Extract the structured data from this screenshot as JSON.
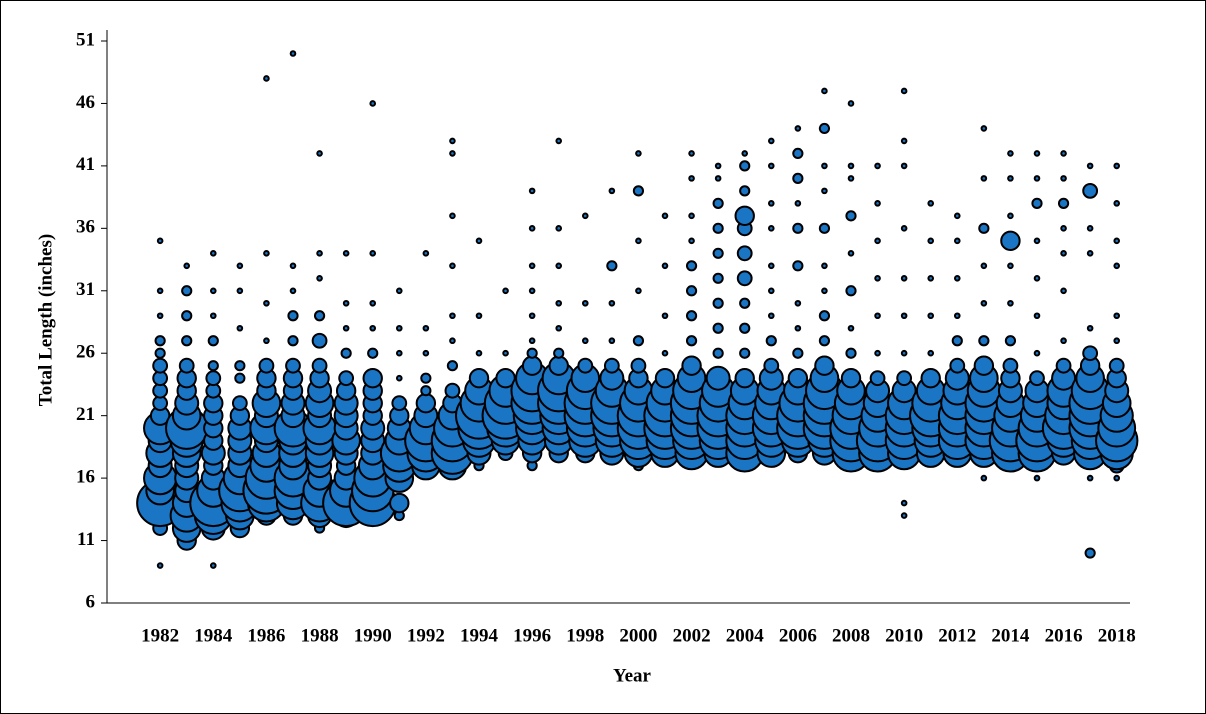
{
  "chart_data": {
    "type": "bubble",
    "x_label": "Year",
    "y_label": "Total Length (inches)",
    "xlim": [
      1980,
      2018.5
    ],
    "xticks": [
      1982,
      1984,
      1986,
      1988,
      1990,
      1992,
      1994,
      1996,
      1998,
      2000,
      2002,
      2004,
      2006,
      2008,
      2010,
      2012,
      2014,
      2016,
      2018
    ],
    "ylim": [
      6,
      51
    ],
    "yticks": [
      6,
      11,
      16,
      21,
      26,
      31,
      36,
      41,
      46,
      51
    ],
    "color": "#1a75c4",
    "edge_color": "#000000",
    "series": [
      {
        "x": 1982,
        "y": [
          9,
          12,
          13,
          14,
          15,
          16,
          17,
          18,
          19,
          20,
          21,
          22,
          23,
          24,
          25,
          26,
          27,
          29,
          31,
          35
        ],
        "size": [
          1,
          3,
          4,
          10,
          6,
          7,
          5,
          6,
          5,
          7,
          4,
          3,
          3,
          3,
          3,
          2,
          2,
          1,
          1,
          1
        ]
      },
      {
        "x": 1983,
        "y": [
          11,
          12,
          13,
          14,
          15,
          16,
          17,
          18,
          19,
          20,
          21,
          22,
          23,
          24,
          25,
          27,
          29,
          31,
          33
        ],
        "size": [
          4,
          6,
          7,
          6,
          5,
          5,
          5,
          6,
          7,
          9,
          6,
          5,
          4,
          4,
          3,
          2,
          2,
          2,
          1
        ]
      },
      {
        "x": 1984,
        "y": [
          9,
          12,
          13,
          14,
          15,
          16,
          17,
          18,
          19,
          20,
          21,
          22,
          23,
          24,
          25,
          27,
          29,
          31,
          34
        ],
        "size": [
          1,
          5,
          8,
          10,
          7,
          5,
          4,
          5,
          4,
          4,
          4,
          4,
          3,
          3,
          2,
          2,
          1,
          1,
          1
        ]
      },
      {
        "x": 1985,
        "y": [
          12,
          13,
          14,
          15,
          16,
          17,
          18,
          19,
          20,
          21,
          22,
          24,
          25,
          28,
          31,
          33
        ],
        "size": [
          4,
          6,
          8,
          9,
          7,
          5,
          5,
          5,
          5,
          4,
          3,
          2,
          2,
          1,
          1,
          1
        ]
      },
      {
        "x": 1986,
        "y": [
          13,
          14,
          15,
          16,
          17,
          18,
          19,
          20,
          21,
          22,
          23,
          24,
          25,
          27,
          30,
          34,
          48
        ],
        "size": [
          4,
          8,
          10,
          9,
          7,
          6,
          5,
          7,
          5,
          6,
          4,
          4,
          3,
          1,
          1,
          1,
          1
        ]
      },
      {
        "x": 1987,
        "y": [
          13,
          14,
          15,
          16,
          17,
          18,
          19,
          20,
          21,
          22,
          23,
          24,
          25,
          27,
          29,
          31,
          33,
          50
        ],
        "size": [
          4,
          7,
          8,
          8,
          6,
          6,
          6,
          8,
          5,
          5,
          4,
          4,
          3,
          2,
          2,
          1,
          1,
          1
        ]
      },
      {
        "x": 1988,
        "y": [
          12,
          13,
          14,
          15,
          16,
          17,
          18,
          19,
          20,
          21,
          22,
          23,
          24,
          25,
          27,
          29,
          32,
          34,
          42
        ],
        "size": [
          2,
          5,
          8,
          7,
          5,
          5,
          6,
          6,
          7,
          5,
          6,
          5,
          4,
          3,
          3,
          2,
          1,
          1,
          1
        ]
      },
      {
        "x": 1989,
        "y": [
          13,
          14,
          15,
          16,
          17,
          18,
          19,
          20,
          21,
          22,
          23,
          24,
          26,
          28,
          30,
          34
        ],
        "size": [
          5,
          10,
          7,
          5,
          4,
          5,
          6,
          5,
          5,
          5,
          4,
          3,
          2,
          1,
          1,
          1
        ]
      },
      {
        "x": 1990,
        "y": [
          13,
          14,
          15,
          16,
          17,
          18,
          19,
          20,
          21,
          22,
          23,
          24,
          26,
          28,
          30,
          34,
          46
        ],
        "size": [
          4,
          10,
          9,
          8,
          6,
          5,
          5,
          5,
          4,
          4,
          4,
          4,
          2,
          1,
          1,
          1,
          1
        ]
      },
      {
        "x": 1991,
        "y": [
          13,
          14,
          16,
          17,
          18,
          19,
          20,
          21,
          22,
          24,
          26,
          28,
          31
        ],
        "size": [
          2,
          4,
          6,
          7,
          8,
          6,
          5,
          4,
          3,
          1,
          1,
          1,
          1
        ]
      },
      {
        "x": 1992,
        "y": [
          17,
          18,
          19,
          20,
          21,
          22,
          23,
          24,
          26,
          28,
          34
        ],
        "size": [
          6,
          8,
          9,
          7,
          5,
          4,
          2,
          2,
          1,
          1,
          1
        ]
      },
      {
        "x": 1993,
        "y": [
          17,
          18,
          19,
          20,
          21,
          22,
          23,
          25,
          27,
          29,
          33,
          37,
          42,
          43
        ],
        "size": [
          6,
          9,
          9,
          8,
          6,
          4,
          3,
          2,
          1,
          1,
          1,
          1,
          1,
          1
        ]
      },
      {
        "x": 1994,
        "y": [
          17,
          18,
          19,
          20,
          21,
          22,
          23,
          24,
          26,
          29,
          35
        ],
        "size": [
          2,
          5,
          7,
          9,
          10,
          8,
          6,
          4,
          1,
          1,
          1
        ]
      },
      {
        "x": 1995,
        "y": [
          18,
          19,
          20,
          21,
          22,
          23,
          24,
          26,
          31
        ],
        "size": [
          3,
          6,
          8,
          10,
          9,
          7,
          4,
          1,
          1
        ]
      },
      {
        "x": 1996,
        "y": [
          17,
          18,
          19,
          20,
          21,
          22,
          23,
          24,
          25,
          26,
          27,
          29,
          31,
          33,
          36,
          39
        ],
        "size": [
          2,
          4,
          6,
          7,
          8,
          9,
          9,
          7,
          4,
          2,
          1,
          1,
          1,
          1,
          1,
          1
        ]
      },
      {
        "x": 1997,
        "y": [
          18,
          19,
          20,
          21,
          22,
          23,
          24,
          25,
          26,
          28,
          30,
          33,
          36,
          43
        ],
        "size": [
          4,
          6,
          7,
          8,
          9,
          9,
          7,
          4,
          2,
          1,
          1,
          1,
          1,
          1
        ]
      },
      {
        "x": 1998,
        "y": [
          18,
          19,
          20,
          21,
          22,
          23,
          24,
          25,
          27,
          30,
          37
        ],
        "size": [
          4,
          7,
          8,
          9,
          9,
          8,
          6,
          3,
          1,
          1,
          1
        ]
      },
      {
        "x": 1999,
        "y": [
          18,
          19,
          20,
          21,
          22,
          23,
          24,
          25,
          27,
          30,
          33,
          39
        ],
        "size": [
          5,
          7,
          8,
          9,
          9,
          7,
          5,
          3,
          1,
          1,
          2,
          1
        ]
      },
      {
        "x": 2000,
        "y": [
          17,
          18,
          19,
          20,
          21,
          22,
          23,
          24,
          25,
          27,
          31,
          35,
          39,
          42
        ],
        "size": [
          2,
          6,
          8,
          9,
          9,
          8,
          6,
          4,
          3,
          2,
          1,
          1,
          2,
          1
        ]
      },
      {
        "x": 2001,
        "y": [
          18,
          19,
          20,
          21,
          22,
          23,
          24,
          26,
          29,
          33,
          37
        ],
        "size": [
          6,
          8,
          9,
          9,
          8,
          6,
          4,
          1,
          1,
          1,
          1
        ]
      },
      {
        "x": 2002,
        "y": [
          18,
          19,
          20,
          21,
          22,
          23,
          24,
          25,
          27,
          29,
          31,
          33,
          35,
          37,
          40,
          42
        ],
        "size": [
          7,
          8,
          9,
          9,
          9,
          8,
          6,
          4,
          2,
          2,
          2,
          2,
          1,
          1,
          1,
          1
        ]
      },
      {
        "x": 2003,
        "y": [
          18,
          19,
          20,
          21,
          22,
          23,
          24,
          26,
          28,
          30,
          32,
          34,
          36,
          38,
          40,
          41
        ],
        "size": [
          6,
          8,
          9,
          9,
          8,
          7,
          5,
          2,
          2,
          2,
          2,
          2,
          2,
          2,
          1,
          1
        ]
      },
      {
        "x": 2004,
        "y": [
          18,
          19,
          20,
          21,
          22,
          23,
          24,
          26,
          28,
          30,
          32,
          34,
          36,
          37,
          39,
          41,
          42
        ],
        "size": [
          8,
          8,
          8,
          8,
          7,
          6,
          4,
          2,
          2,
          2,
          3,
          3,
          3,
          4,
          2,
          2,
          1
        ]
      },
      {
        "x": 2005,
        "y": [
          18,
          19,
          20,
          21,
          22,
          23,
          24,
          25,
          27,
          29,
          31,
          33,
          36,
          38,
          41,
          43
        ],
        "size": [
          6,
          7,
          8,
          8,
          7,
          6,
          5,
          3,
          2,
          1,
          1,
          1,
          1,
          1,
          1,
          1
        ]
      },
      {
        "x": 2006,
        "y": [
          18,
          19,
          20,
          21,
          22,
          23,
          24,
          26,
          28,
          30,
          33,
          36,
          38,
          40,
          42,
          44
        ],
        "size": [
          4,
          7,
          9,
          9,
          8,
          6,
          4,
          2,
          1,
          1,
          2,
          2,
          1,
          2,
          2,
          1
        ]
      },
      {
        "x": 2007,
        "y": [
          18,
          19,
          20,
          21,
          22,
          23,
          24,
          25,
          27,
          29,
          31,
          33,
          36,
          39,
          41,
          44,
          47
        ],
        "size": [
          5,
          7,
          9,
          9,
          9,
          8,
          6,
          4,
          2,
          2,
          1,
          1,
          2,
          1,
          1,
          2,
          1
        ]
      },
      {
        "x": 2008,
        "y": [
          18,
          19,
          20,
          21,
          22,
          23,
          24,
          26,
          28,
          31,
          34,
          37,
          40,
          41,
          46
        ],
        "size": [
          8,
          9,
          9,
          8,
          7,
          6,
          4,
          2,
          1,
          2,
          1,
          2,
          1,
          1,
          1
        ]
      },
      {
        "x": 2009,
        "y": [
          18,
          19,
          20,
          21,
          22,
          23,
          24,
          26,
          29,
          32,
          35,
          38,
          41
        ],
        "size": [
          8,
          9,
          8,
          7,
          6,
          5,
          3,
          1,
          1,
          1,
          1,
          1,
          1
        ]
      },
      {
        "x": 2010,
        "y": [
          13,
          14,
          18,
          19,
          20,
          21,
          22,
          23,
          24,
          26,
          29,
          32,
          36,
          41,
          43,
          47
        ],
        "size": [
          1,
          1,
          7,
          8,
          8,
          8,
          7,
          5,
          3,
          1,
          1,
          1,
          1,
          1,
          1,
          1
        ]
      },
      {
        "x": 2011,
        "y": [
          18,
          19,
          20,
          21,
          22,
          23,
          24,
          26,
          29,
          32,
          35,
          38
        ],
        "size": [
          6,
          7,
          8,
          9,
          8,
          6,
          4,
          1,
          1,
          1,
          1,
          1
        ]
      },
      {
        "x": 2012,
        "y": [
          18,
          19,
          20,
          21,
          22,
          23,
          24,
          25,
          27,
          29,
          32,
          35,
          37
        ],
        "size": [
          6,
          8,
          8,
          8,
          7,
          6,
          5,
          3,
          2,
          1,
          1,
          1,
          1
        ]
      },
      {
        "x": 2013,
        "y": [
          16,
          18,
          19,
          20,
          21,
          22,
          23,
          24,
          25,
          27,
          30,
          33,
          36,
          40,
          44
        ],
        "size": [
          1,
          6,
          8,
          8,
          8,
          8,
          7,
          6,
          4,
          2,
          1,
          1,
          2,
          1,
          1
        ]
      },
      {
        "x": 2014,
        "y": [
          18,
          19,
          20,
          21,
          22,
          23,
          24,
          25,
          27,
          30,
          33,
          35,
          37,
          40,
          42
        ],
        "size": [
          8,
          9,
          8,
          7,
          6,
          5,
          4,
          3,
          2,
          1,
          1,
          4,
          1,
          1,
          1
        ]
      },
      {
        "x": 2015,
        "y": [
          16,
          18,
          19,
          20,
          21,
          22,
          23,
          24,
          26,
          29,
          32,
          35,
          38,
          40,
          42
        ],
        "size": [
          1,
          8,
          9,
          8,
          7,
          6,
          5,
          3,
          1,
          1,
          1,
          1,
          2,
          1,
          1
        ]
      },
      {
        "x": 2016,
        "y": [
          18,
          19,
          20,
          21,
          22,
          23,
          24,
          25,
          27,
          31,
          34,
          36,
          38,
          40,
          42
        ],
        "size": [
          5,
          7,
          9,
          8,
          7,
          7,
          5,
          3,
          1,
          1,
          1,
          1,
          2,
          1,
          1
        ]
      },
      {
        "x": 2017,
        "y": [
          10,
          16,
          18,
          19,
          20,
          21,
          22,
          23,
          24,
          25,
          26,
          28,
          34,
          36,
          39,
          41
        ],
        "size": [
          2,
          1,
          7,
          8,
          9,
          9,
          9,
          8,
          6,
          4,
          3,
          1,
          1,
          1,
          3,
          1
        ]
      },
      {
        "x": 2018,
        "y": [
          16,
          17,
          18,
          19,
          20,
          21,
          22,
          23,
          24,
          25,
          27,
          29,
          33,
          35,
          38,
          41
        ],
        "size": [
          1,
          3,
          7,
          9,
          8,
          7,
          6,
          5,
          4,
          3,
          1,
          1,
          1,
          1,
          1,
          1
        ]
      }
    ]
  }
}
